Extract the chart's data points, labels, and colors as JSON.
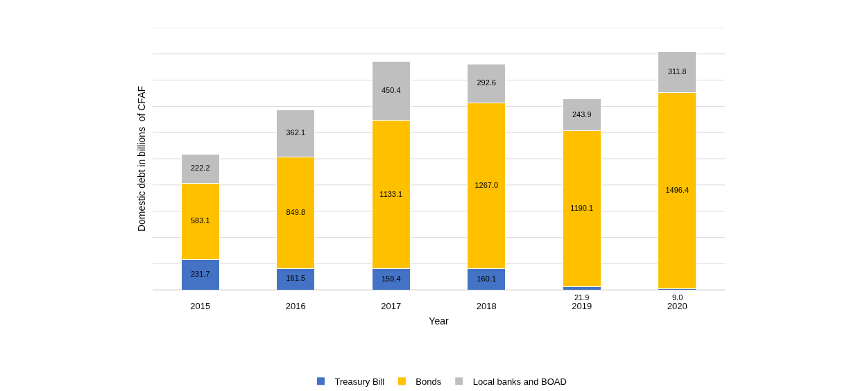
{
  "chart_data": {
    "type": "bar",
    "stacked": true,
    "xlabel": "Year",
    "ylabel": "Domestic debt in billions  of CFAF",
    "categories": [
      "2015",
      "2016",
      "2017",
      "2018",
      "2019",
      "2020"
    ],
    "series": [
      {
        "name": "Treasury Bill",
        "color": "#4472c4",
        "values": [
          231.7,
          161.5,
          159.4,
          160.1,
          21.9,
          9.0
        ],
        "value_labels": [
          "231.7",
          "161.5",
          "159.4",
          "160.1",
          "21.9",
          "9.0"
        ]
      },
      {
        "name": "Bonds",
        "color": "#ffc000",
        "values": [
          583.1,
          849.8,
          1133.1,
          1267.0,
          1190.1,
          1496.4
        ],
        "value_labels": [
          "583.1",
          "849.8",
          "1133.1",
          "1267.0",
          "1190.1",
          "1496.4"
        ]
      },
      {
        "name": "Local banks and BOAD",
        "color": "#bfbfbf",
        "values": [
          222.2,
          362.1,
          450.4,
          292.6,
          243.9,
          311.8
        ],
        "value_labels": [
          "222.2",
          "362.1",
          "450.4",
          "292.6",
          "243.9",
          "311.8"
        ]
      }
    ],
    "ylim": [
      0,
      2000
    ],
    "yticks": [
      {
        "value": 0,
        "label": null
      },
      {
        "value": 200,
        "label": null
      },
      {
        "value": 400,
        "label": null
      },
      {
        "value": 600,
        "label": null
      },
      {
        "value": 800,
        "label": null
      },
      {
        "value": 1000,
        "label": null
      },
      {
        "value": 1200,
        "label": null
      },
      {
        "value": 1400,
        "label": null
      },
      {
        "value": 1600,
        "label": null
      },
      {
        "value": 1800,
        "label": null
      },
      {
        "value": 2000,
        "label": null
      }
    ],
    "grid": "y",
    "legend": "bottom",
    "tick_labels": "x"
  }
}
